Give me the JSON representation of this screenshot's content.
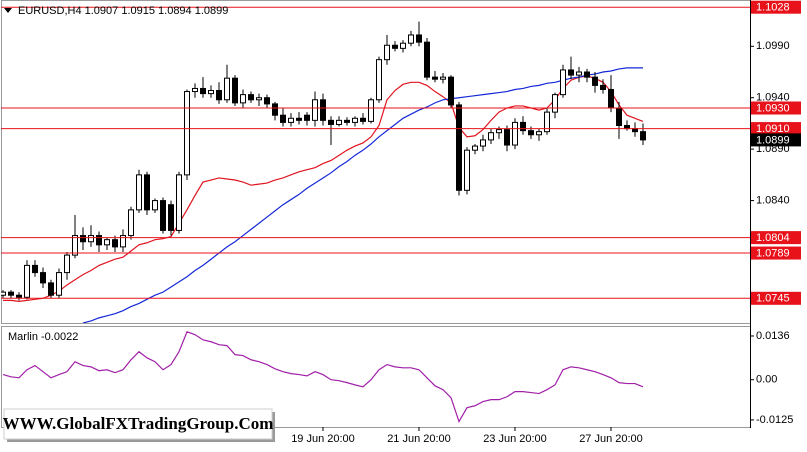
{
  "watermark": "WWW.GlobalFXTradingGroup.Com",
  "chart_data": [
    {
      "type": "candlestick",
      "title": "EURUSD,H4  1.0907 1.0915 1.0894 1.0899",
      "categories": [
        null,
        null,
        null,
        null,
        null,
        null,
        null,
        null,
        null,
        null,
        null,
        null,
        null,
        null,
        null,
        null,
        null,
        null,
        null,
        null,
        null,
        null,
        null,
        null,
        null,
        null,
        null,
        null,
        null,
        null,
        null,
        null,
        null,
        null,
        null,
        null,
        null,
        null,
        null,
        null,
        "19 Jun 20:00",
        null,
        null,
        null,
        null,
        null,
        null,
        null,
        null,
        null,
        null,
        null,
        "21 Jun 20:00",
        null,
        null,
        null,
        null,
        null,
        null,
        null,
        null,
        null,
        null,
        null,
        "23 Jun 20:00",
        null,
        null,
        null,
        null,
        null,
        null,
        null,
        null,
        null,
        null,
        null,
        "27 Jun 20:00",
        null,
        null,
        null,
        null
      ],
      "open": [
        1.0748,
        1.0751,
        1.0748,
        1.0746,
        1.0777,
        1.077,
        1.076,
        1.0748,
        1.077,
        1.0787,
        1.0806,
        1.08,
        1.0806,
        1.0797,
        1.0802,
        1.0795,
        1.0806,
        1.0831,
        1.0865,
        1.0831,
        1.084,
        1.0836,
        1.0811,
        1.0865,
        1.0946,
        1.0949,
        1.0944,
        1.0947,
        1.0938,
        1.0959,
        1.0935,
        1.0943,
        1.0938,
        1.094,
        1.0934,
        1.0923,
        1.0916,
        1.092,
        1.0923,
        1.0918,
        1.0938,
        1.0918,
        1.0914,
        1.0918,
        1.0916,
        1.092,
        1.0917,
        1.0938,
        1.0977,
        1.0991,
        1.0988,
        1.0993,
        1.1001,
        1.0994,
        1.096,
        1.0958,
        1.096,
        1.0933,
        1.085,
        1.0889,
        1.0893,
        1.0899,
        1.0906,
        1.0909,
        1.0894,
        1.0916,
        1.0908,
        1.0904,
        1.0907,
        1.0926,
        1.0943,
        1.0967,
        1.0962,
        1.0965,
        1.096,
        1.0952,
        1.0948,
        1.093,
        1.0913,
        1.091,
        1.0907
      ],
      "high": [
        1.0753,
        1.0753,
        1.0751,
        1.0782,
        1.0782,
        1.0775,
        1.0763,
        1.0774,
        1.079,
        1.0826,
        1.0814,
        1.0816,
        1.081,
        1.0804,
        1.0806,
        1.0812,
        1.0834,
        1.087,
        1.0868,
        1.0842,
        1.0843,
        1.084,
        1.0868,
        1.0948,
        1.0954,
        1.096,
        1.0952,
        1.0955,
        1.0972,
        1.0962,
        1.0948,
        1.0946,
        1.0944,
        1.0943,
        1.0936,
        1.093,
        1.0925,
        1.0926,
        1.0926,
        1.0946,
        1.0944,
        1.0922,
        1.0922,
        1.0921,
        1.0922,
        1.0925,
        1.094,
        1.098,
        1.1001,
        1.0995,
        1.0996,
        1.1005,
        1.1014,
        1.0998,
        1.0966,
        1.0964,
        1.0962,
        1.0936,
        1.0892,
        1.0895,
        1.0904,
        1.091,
        1.0912,
        1.0913,
        1.092,
        1.0922,
        1.0912,
        1.091,
        1.093,
        1.0945,
        1.0972,
        1.098,
        1.097,
        1.0968,
        1.0965,
        1.0958,
        1.0962,
        1.0936,
        1.0918,
        1.0916,
        1.0915
      ],
      "low": [
        1.0745,
        1.0745,
        1.0743,
        1.0744,
        1.0766,
        1.0755,
        1.0745,
        1.0745,
        1.0763,
        1.0784,
        1.0792,
        1.0795,
        1.079,
        1.0792,
        1.079,
        1.079,
        1.0802,
        1.0828,
        1.0826,
        1.0828,
        1.0808,
        1.0806,
        1.0808,
        1.086,
        1.094,
        1.094,
        1.094,
        1.0934,
        1.0935,
        1.0932,
        1.093,
        1.0935,
        1.0932,
        1.093,
        1.0918,
        1.0912,
        1.0912,
        1.0914,
        1.0913,
        1.0912,
        1.0913,
        1.0894,
        1.0912,
        1.0913,
        1.0912,
        1.0914,
        1.0915,
        1.0935,
        1.0972,
        1.0985,
        1.0984,
        1.099,
        1.099,
        1.0957,
        1.0955,
        1.0954,
        1.093,
        1.0845,
        1.0846,
        1.0885,
        1.0888,
        1.0895,
        1.09,
        1.0888,
        1.089,
        1.0904,
        1.09,
        1.0898,
        1.0904,
        1.092,
        1.094,
        1.0958,
        1.0955,
        1.0955,
        1.0945,
        1.0944,
        1.0926,
        1.09,
        1.0908,
        1.0902,
        1.0894
      ],
      "close": [
        1.0751,
        1.0748,
        1.0746,
        1.0777,
        1.077,
        1.076,
        1.0748,
        1.077,
        1.0787,
        1.0806,
        1.08,
        1.0806,
        1.0797,
        1.0802,
        1.0795,
        1.0806,
        1.0831,
        1.0865,
        1.0831,
        1.084,
        1.0811,
        1.0811,
        1.0865,
        1.0946,
        1.0949,
        1.0944,
        1.0947,
        1.0938,
        1.0959,
        1.0935,
        1.0943,
        1.0938,
        1.094,
        1.0934,
        1.0923,
        1.0916,
        1.092,
        1.0918,
        1.0918,
        1.0938,
        1.0918,
        1.0914,
        1.0918,
        1.0916,
        1.092,
        1.0917,
        1.0938,
        1.0977,
        1.0991,
        1.0988,
        1.0993,
        1.1001,
        1.0994,
        1.096,
        1.0958,
        1.096,
        1.0933,
        1.085,
        1.0889,
        1.0893,
        1.0899,
        1.0906,
        1.0909,
        1.0894,
        1.0916,
        1.0908,
        1.0904,
        1.0907,
        1.0926,
        1.0943,
        1.0967,
        1.0962,
        1.0965,
        1.096,
        1.0952,
        1.0948,
        1.093,
        1.0913,
        1.091,
        1.0907,
        1.0899
      ],
      "up_color": "#ffffff",
      "down_color": "#000000",
      "lines": [
        {
          "color": "#e0141e",
          "values": [
            1.0743,
            1.0743,
            1.0742,
            1.0743,
            1.0744,
            1.0745,
            1.0748,
            1.0752,
            1.0758,
            1.0763,
            1.0768,
            1.0772,
            1.0777,
            1.078,
            1.0783,
            1.0785,
            1.0791,
            1.0797,
            1.0799,
            1.0802,
            1.0803,
            1.0805,
            1.0818,
            1.0831,
            1.0845,
            1.0858,
            1.086,
            1.0862,
            1.0861,
            1.086,
            1.0858,
            1.0855,
            1.0856,
            1.0857,
            1.086,
            1.0862,
            1.0865,
            1.0868,
            1.087,
            1.0872,
            1.0876,
            1.0879,
            1.0884,
            1.0889,
            1.0893,
            1.0896,
            1.0902,
            1.0913,
            1.0938,
            1.0947,
            1.0953,
            1.0955,
            1.0955,
            1.0952,
            1.0946,
            1.0941,
            1.0935,
            1.0911,
            1.0902,
            1.0903,
            1.0909,
            1.0918,
            1.0926,
            1.093,
            1.0932,
            1.0932,
            1.093,
            1.0928,
            1.093,
            1.0938,
            1.0949,
            1.0957,
            1.096,
            1.0961,
            1.0959,
            1.0955,
            1.0946,
            1.0933,
            1.0923,
            1.092,
            1.0917
          ]
        },
        {
          "color": "#1428d8",
          "values": [
            null,
            null,
            null,
            null,
            null,
            null,
            null,
            null,
            null,
            null,
            1.0721,
            1.0723,
            1.0726,
            1.0728,
            1.073,
            1.0733,
            1.0737,
            1.074,
            1.0744,
            1.0748,
            1.0751,
            1.0756,
            1.0761,
            1.0766,
            1.0772,
            1.0777,
            1.0783,
            1.0789,
            1.0795,
            1.08,
            1.0806,
            1.0812,
            1.0818,
            1.0824,
            1.083,
            1.0836,
            1.0841,
            1.0846,
            1.0852,
            1.0857,
            1.0862,
            1.0867,
            1.0873,
            1.0878,
            1.0884,
            1.0889,
            1.0895,
            1.0902,
            1.0908,
            1.0914,
            1.092,
            1.0924,
            1.0928,
            1.0931,
            1.0935,
            1.0938,
            1.0939,
            1.094,
            1.0941,
            1.0942,
            1.0943,
            1.0944,
            1.0945,
            1.0946,
            1.0948,
            1.0949,
            1.0951,
            1.0952,
            1.0954,
            1.0955,
            1.0957,
            1.0959,
            1.096,
            1.0962,
            1.0963,
            1.0965,
            1.0966,
            1.0968,
            1.0969,
            1.0969,
            1.0969
          ]
        }
      ],
      "levels": [
        1.1028,
        {
          "value": 1.093,
          "label": "1.0930"
        },
        {
          "value": 1.091,
          "label": "1.0910"
        },
        1.0804,
        1.0789,
        1.0745
      ],
      "level_color": "#e8121b",
      "last_price": 1.0899,
      "ylim": [
        1.0721,
        1.1035
      ],
      "yticks": [
        {
          "value": 1.099,
          "label": "1.0990"
        },
        {
          "value": 1.094,
          "label": "1.0940"
        },
        {
          "value": 1.089,
          "label": "1.0890"
        },
        {
          "value": 1.084,
          "label": "1.0840"
        }
      ]
    },
    {
      "type": "line",
      "title": "Marlin -0.0022",
      "color": "#a01fa8",
      "values": [
        0.0016,
        0.0009,
        0.0006,
        0.0031,
        0.0044,
        0.0025,
        0.0006,
        0.0016,
        0.0025,
        0.0056,
        0.0044,
        0.004,
        0.0028,
        0.0031,
        0.0022,
        0.0031,
        0.0062,
        0.0087,
        0.0068,
        0.0056,
        0.0031,
        0.0047,
        0.0087,
        0.0149,
        0.014,
        0.0124,
        0.0118,
        0.0109,
        0.0106,
        0.0078,
        0.0075,
        0.0062,
        0.0056,
        0.0047,
        0.0034,
        0.0025,
        0.0019,
        0.0016,
        0.0012,
        0.0025,
        0.0016,
        0,
        -0.0003,
        -0.0009,
        -0.0016,
        -0.0022,
        0,
        0.0031,
        0.0047,
        0.004,
        0.0037,
        0.0037,
        0.0031,
        0.0006,
        -0.0019,
        -0.0031,
        -0.0056,
        -0.013,
        -0.0087,
        -0.0081,
        -0.0068,
        -0.0062,
        -0.0062,
        -0.0053,
        -0.0037,
        -0.0037,
        -0.004,
        -0.0043,
        -0.0031,
        -0.0016,
        0.0031,
        0.004,
        0.0037,
        0.0031,
        0.0025,
        0.0016,
        0.0006,
        -0.0009,
        -0.0012,
        -0.0012,
        -0.0022
      ],
      "ylim": [
        -0.0147,
        0.0167
      ],
      "yticks": [
        0.0136,
        {
          "value": 0,
          "label": "0.00"
        },
        -0.0125
      ]
    }
  ]
}
